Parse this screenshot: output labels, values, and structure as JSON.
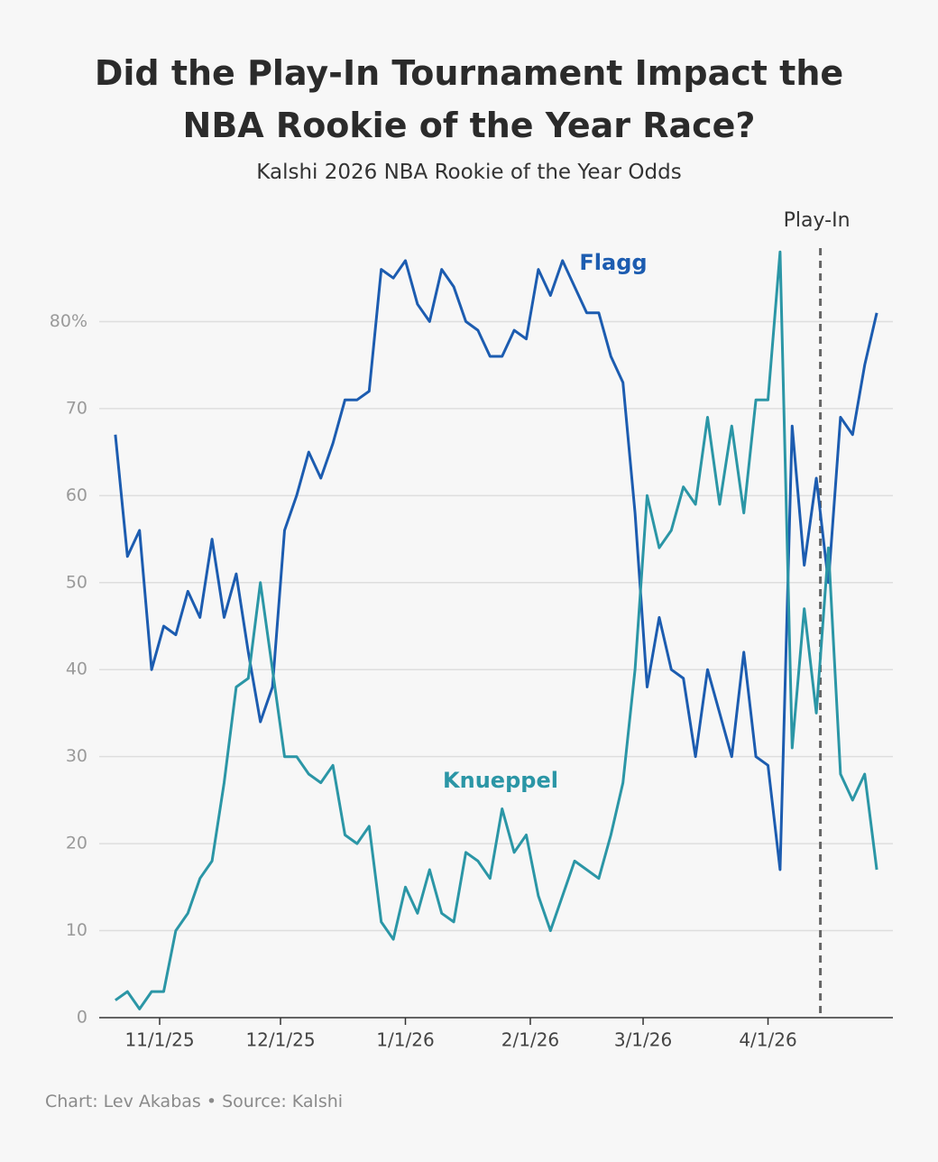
{
  "chart_data": {
    "type": "line",
    "title": "Did the Play-In Tournament Impact the NBA Rookie of the Year Race?",
    "subtitle": "Kalshi 2026 NBA Rookie of the Year Odds",
    "footer": "Chart: Lev Akabas • Source: Kalshi",
    "x": [
      "2025-10-21",
      "2025-10-24",
      "2025-10-27",
      "2025-10-30",
      "2025-11-02",
      "2025-11-05",
      "2025-11-08",
      "2025-11-11",
      "2025-11-14",
      "2025-11-17",
      "2025-11-20",
      "2025-11-23",
      "2025-11-26",
      "2025-11-29",
      "2025-12-02",
      "2025-12-05",
      "2025-12-08",
      "2025-12-11",
      "2025-12-14",
      "2025-12-17",
      "2025-12-20",
      "2025-12-23",
      "2025-12-26",
      "2025-12-29",
      "2026-01-01",
      "2026-01-04",
      "2026-01-07",
      "2026-01-10",
      "2026-01-13",
      "2026-01-16",
      "2026-01-19",
      "2026-01-22",
      "2026-01-25",
      "2026-01-28",
      "2026-01-31",
      "2026-02-03",
      "2026-02-06",
      "2026-02-09",
      "2026-02-12",
      "2026-02-15",
      "2026-02-18",
      "2026-02-21",
      "2026-02-24",
      "2026-02-27",
      "2026-03-02",
      "2026-03-05",
      "2026-03-08",
      "2026-03-11",
      "2026-03-14",
      "2026-03-17",
      "2026-03-20",
      "2026-03-23",
      "2026-03-26",
      "2026-03-29",
      "2026-04-01",
      "2026-04-04",
      "2026-04-07",
      "2026-04-10",
      "2026-04-13",
      "2026-04-16",
      "2026-04-19",
      "2026-04-22",
      "2026-04-25",
      "2026-04-28"
    ],
    "series": [
      {
        "name": "Flagg",
        "color": "#1c5cb0",
        "values": [
          67,
          53,
          56,
          40,
          45,
          44,
          49,
          46,
          55,
          46,
          51,
          42,
          34,
          38,
          56,
          60,
          65,
          62,
          66,
          71,
          71,
          72,
          86,
          85,
          87,
          82,
          80,
          86,
          84,
          80,
          79,
          76,
          76,
          79,
          78,
          86,
          83,
          87,
          84,
          81,
          81,
          76,
          73,
          58,
          38,
          46,
          40,
          39,
          30,
          40,
          35,
          30,
          42,
          30,
          29,
          17,
          68,
          52,
          62,
          50,
          69,
          67,
          75,
          81
        ]
      },
      {
        "name": "Knueppel",
        "color": "#2b96a6",
        "values": [
          2,
          3,
          1,
          3,
          3,
          10,
          12,
          16,
          18,
          27,
          38,
          39,
          50,
          40,
          30,
          30,
          28,
          27,
          29,
          21,
          20,
          22,
          11,
          9,
          15,
          12,
          17,
          12,
          11,
          19,
          18,
          16,
          24,
          19,
          21,
          14,
          10,
          14,
          18,
          17,
          16,
          21,
          27,
          40,
          60,
          54,
          56,
          61,
          59,
          69,
          59,
          68,
          58,
          71,
          71,
          88,
          31,
          47,
          35,
          54,
          28,
          25,
          28,
          17
        ]
      }
    ],
    "xlim": [
      "2025-10-17",
      "2026-05-02"
    ],
    "xticks": [
      {
        "value": "2025-11-01",
        "label": "11/1/25"
      },
      {
        "value": "2025-12-01",
        "label": "12/1/25"
      },
      {
        "value": "2026-01-01",
        "label": "1/1/26"
      },
      {
        "value": "2026-02-01",
        "label": "2/1/26"
      },
      {
        "value": "2026-03-01",
        "label": "3/1/26"
      },
      {
        "value": "2026-04-01",
        "label": "4/1/26"
      }
    ],
    "ylim": [
      0,
      90
    ],
    "yticks": [
      0,
      10,
      20,
      30,
      40,
      50,
      60,
      70,
      {
        "value": 80,
        "label": "80%"
      }
    ],
    "grid": true,
    "event": {
      "label": "Play-In",
      "x": "2026-04-14"
    }
  }
}
